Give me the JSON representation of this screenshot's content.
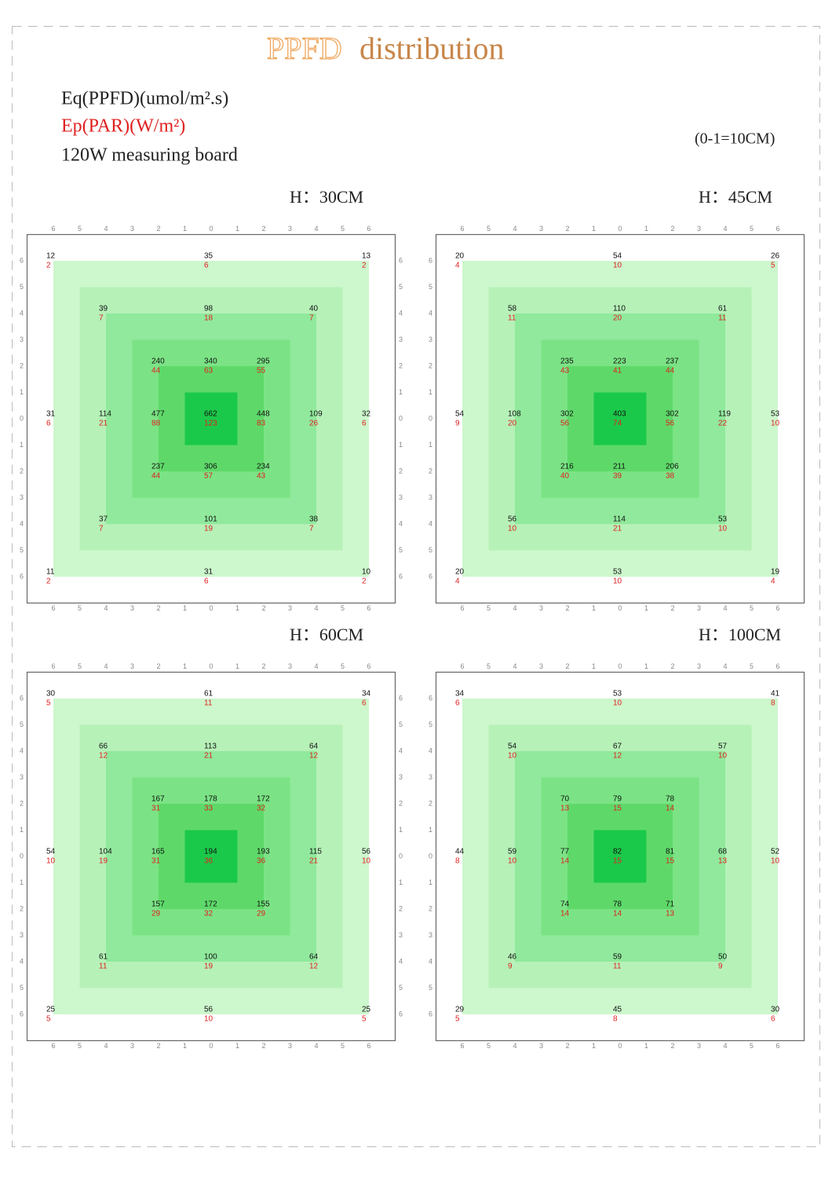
{
  "title": {
    "highlight": "PPFD",
    "rest": "distribution"
  },
  "legend": {
    "ppfd": "Eq(PPFD)(umol/m².s)",
    "par": "Ep(PAR)(W/m²)",
    "board": "120W measuring board",
    "scale": "(0-1=10CM)"
  },
  "axis_labels": [
    "6",
    "5",
    "4",
    "3",
    "2",
    "1",
    "0",
    "1",
    "2",
    "3",
    "4",
    "5",
    "6"
  ],
  "panels": [
    {
      "height": "H：30CM",
      "rows": [
        [
          [
            12,
            2
          ],
          [
            35,
            6
          ],
          [
            13,
            2
          ]
        ],
        [
          [
            39,
            7
          ],
          [
            98,
            18
          ],
          [
            40,
            7
          ]
        ],
        [
          [
            240,
            44
          ],
          [
            340,
            63
          ],
          [
            295,
            55
          ]
        ],
        [
          [
            31,
            6
          ],
          [
            114,
            21
          ],
          [
            477,
            88
          ],
          [
            662,
            123
          ],
          [
            448,
            83
          ],
          [
            109,
            26
          ],
          [
            32,
            6
          ]
        ],
        [
          [
            237,
            44
          ],
          [
            306,
            57
          ],
          [
            234,
            43
          ]
        ],
        [
          [
            37,
            7
          ],
          [
            101,
            19
          ],
          [
            38,
            7
          ]
        ],
        [
          [
            11,
            2
          ],
          [
            31,
            6
          ],
          [
            10,
            2
          ]
        ]
      ]
    },
    {
      "height": "H：45CM",
      "rows": [
        [
          [
            20,
            4
          ],
          [
            54,
            10
          ],
          [
            26,
            5
          ]
        ],
        [
          [
            58,
            11
          ],
          [
            110,
            20
          ],
          [
            61,
            11
          ]
        ],
        [
          [
            235,
            43
          ],
          [
            223,
            41
          ],
          [
            237,
            44
          ]
        ],
        [
          [
            54,
            9
          ],
          [
            108,
            20
          ],
          [
            302,
            56
          ],
          [
            403,
            74
          ],
          [
            302,
            56
          ],
          [
            119,
            22
          ],
          [
            53,
            10
          ]
        ],
        [
          [
            216,
            40
          ],
          [
            211,
            39
          ],
          [
            206,
            38
          ]
        ],
        [
          [
            56,
            10
          ],
          [
            114,
            21
          ],
          [
            53,
            10
          ]
        ],
        [
          [
            20,
            4
          ],
          [
            53,
            10
          ],
          [
            19,
            4
          ]
        ]
      ]
    },
    {
      "height": "H：60CM",
      "rows": [
        [
          [
            30,
            5
          ],
          [
            61,
            11
          ],
          [
            34,
            6
          ]
        ],
        [
          [
            66,
            12
          ],
          [
            113,
            21
          ],
          [
            64,
            12
          ]
        ],
        [
          [
            167,
            31
          ],
          [
            178,
            33
          ],
          [
            172,
            32
          ]
        ],
        [
          [
            54,
            10
          ],
          [
            104,
            19
          ],
          [
            165,
            31
          ],
          [
            194,
            36
          ],
          [
            193,
            36
          ],
          [
            115,
            21
          ],
          [
            56,
            10
          ]
        ],
        [
          [
            157,
            29
          ],
          [
            172,
            32
          ],
          [
            155,
            29
          ]
        ],
        [
          [
            61,
            11
          ],
          [
            100,
            19
          ],
          [
            64,
            12
          ]
        ],
        [
          [
            25,
            5
          ],
          [
            56,
            10
          ],
          [
            25,
            5
          ]
        ]
      ]
    },
    {
      "height": "H：100CM",
      "rows": [
        [
          [
            34,
            6
          ],
          [
            53,
            10
          ],
          [
            41,
            8
          ]
        ],
        [
          [
            54,
            10
          ],
          [
            67,
            12
          ],
          [
            57,
            10
          ]
        ],
        [
          [
            70,
            13
          ],
          [
            79,
            15
          ],
          [
            78,
            14
          ]
        ],
        [
          [
            44,
            8
          ],
          [
            59,
            10
          ],
          [
            77,
            14
          ],
          [
            82,
            15
          ],
          [
            81,
            15
          ],
          [
            68,
            13
          ],
          [
            52,
            10
          ]
        ],
        [
          [
            74,
            14
          ],
          [
            78,
            14
          ],
          [
            71,
            13
          ]
        ],
        [
          [
            46,
            9
          ],
          [
            59,
            11
          ],
          [
            50,
            9
          ]
        ],
        [
          [
            29,
            5
          ],
          [
            45,
            8
          ],
          [
            30,
            6
          ]
        ]
      ]
    }
  ]
}
